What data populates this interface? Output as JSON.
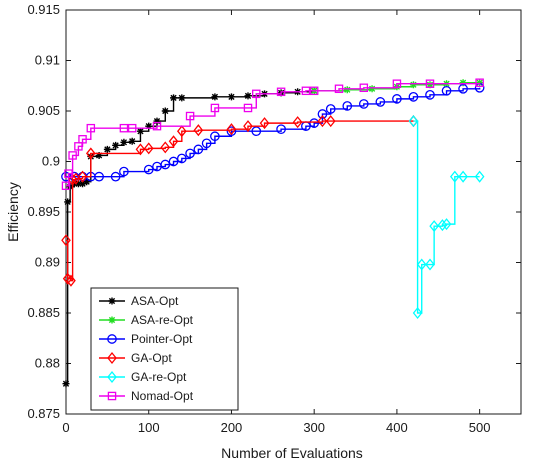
{
  "chart_data": {
    "type": "line",
    "xlabel": "Number of Evaluations",
    "ylabel": "Efficiency",
    "xlim": [
      0,
      550
    ],
    "ylim": [
      0.875,
      0.915
    ],
    "x_ticks": [
      0,
      100,
      200,
      300,
      400,
      500
    ],
    "y_ticks": [
      0.875,
      0.88,
      0.885,
      0.89,
      0.895,
      0.9,
      0.905,
      0.91,
      0.915
    ],
    "grid": false,
    "legend_position": "lower-left",
    "series": [
      {
        "name": "ASA-Opt",
        "color": "#000000",
        "marker": "star",
        "step": true,
        "points": [
          [
            0,
            0.878
          ],
          [
            2,
            0.896
          ],
          [
            5,
            0.8975
          ],
          [
            10,
            0.8978
          ],
          [
            15,
            0.8978
          ],
          [
            20,
            0.8978
          ],
          [
            25,
            0.898
          ],
          [
            30,
            0.9005
          ],
          [
            40,
            0.9006
          ],
          [
            50,
            0.9012
          ],
          [
            60,
            0.9016
          ],
          [
            70,
            0.9019
          ],
          [
            80,
            0.902
          ],
          [
            90,
            0.903
          ],
          [
            100,
            0.9035
          ],
          [
            110,
            0.904
          ],
          [
            120,
            0.905
          ],
          [
            130,
            0.9063
          ],
          [
            140,
            0.9063
          ],
          [
            180,
            0.9064
          ],
          [
            200,
            0.9064
          ],
          [
            220,
            0.9065
          ],
          [
            240,
            0.9067
          ],
          [
            260,
            0.9068
          ],
          [
            280,
            0.9069
          ],
          [
            300,
            0.907
          ]
        ]
      },
      {
        "name": "ASA-re-Opt",
        "color": "#22dd22",
        "marker": "star",
        "step": true,
        "points": [
          [
            300,
            0.907
          ],
          [
            340,
            0.9071
          ],
          [
            370,
            0.9072
          ],
          [
            400,
            0.9074
          ],
          [
            420,
            0.9076
          ],
          [
            440,
            0.9076
          ],
          [
            460,
            0.9077
          ],
          [
            480,
            0.9078
          ],
          [
            500,
            0.9078
          ]
        ]
      },
      {
        "name": "Pointer-Opt",
        "color": "#0000ff",
        "marker": "circle",
        "step": true,
        "points": [
          [
            0,
            0.8985
          ],
          [
            10,
            0.8985
          ],
          [
            20,
            0.8985
          ],
          [
            30,
            0.8985
          ],
          [
            40,
            0.8985
          ],
          [
            60,
            0.8985
          ],
          [
            70,
            0.899
          ],
          [
            100,
            0.8992
          ],
          [
            110,
            0.8995
          ],
          [
            120,
            0.8997
          ],
          [
            130,
            0.9
          ],
          [
            140,
            0.9003
          ],
          [
            150,
            0.9008
          ],
          [
            160,
            0.9012
          ],
          [
            170,
            0.9018
          ],
          [
            180,
            0.9025
          ],
          [
            200,
            0.903
          ],
          [
            230,
            0.903
          ],
          [
            260,
            0.9032
          ],
          [
            290,
            0.9035
          ],
          [
            300,
            0.9038
          ],
          [
            310,
            0.9047
          ],
          [
            320,
            0.9052
          ],
          [
            340,
            0.9055
          ],
          [
            360,
            0.9057
          ],
          [
            380,
            0.9059
          ],
          [
            400,
            0.9062
          ],
          [
            420,
            0.9064
          ],
          [
            440,
            0.9066
          ],
          [
            460,
            0.907
          ],
          [
            480,
            0.9072
          ],
          [
            500,
            0.9073
          ]
        ]
      },
      {
        "name": "GA-Opt",
        "color": "#ff0000",
        "marker": "diamond",
        "step": true,
        "points": [
          [
            0,
            0.8922
          ],
          [
            2,
            0.8884
          ],
          [
            6,
            0.8882
          ],
          [
            8,
            0.8982
          ],
          [
            12,
            0.8983
          ],
          [
            20,
            0.8985
          ],
          [
            30,
            0.9008
          ],
          [
            90,
            0.9012
          ],
          [
            100,
            0.9013
          ],
          [
            120,
            0.9014
          ],
          [
            130,
            0.902
          ],
          [
            140,
            0.903
          ],
          [
            160,
            0.9031
          ],
          [
            200,
            0.9032
          ],
          [
            220,
            0.9035
          ],
          [
            240,
            0.9038
          ],
          [
            280,
            0.9039
          ],
          [
            310,
            0.904
          ],
          [
            320,
            0.904
          ],
          [
            420,
            0.904
          ]
        ]
      },
      {
        "name": "GA-re-Opt",
        "color": "#00ffff",
        "marker": "diamond",
        "step": true,
        "points": [
          [
            420,
            0.904
          ],
          [
            425,
            0.885
          ],
          [
            430,
            0.8898
          ],
          [
            440,
            0.8898
          ],
          [
            445,
            0.8936
          ],
          [
            455,
            0.8937
          ],
          [
            460,
            0.8938
          ],
          [
            470,
            0.8985
          ],
          [
            480,
            0.8985
          ],
          [
            500,
            0.8985
          ]
        ]
      },
      {
        "name": "Nomad-Opt",
        "color": "#ee00ee",
        "marker": "square",
        "step": true,
        "points": [
          [
            0,
            0.8976
          ],
          [
            3,
            0.8988
          ],
          [
            8,
            0.9006
          ],
          [
            15,
            0.9015
          ],
          [
            20,
            0.9022
          ],
          [
            30,
            0.9033
          ],
          [
            70,
            0.9033
          ],
          [
            80,
            0.9033
          ],
          [
            110,
            0.9035
          ],
          [
            150,
            0.9045
          ],
          [
            180,
            0.9053
          ],
          [
            220,
            0.9053
          ],
          [
            230,
            0.9067
          ],
          [
            260,
            0.9069
          ],
          [
            290,
            0.907
          ],
          [
            300,
            0.907
          ],
          [
            330,
            0.9072
          ],
          [
            360,
            0.9073
          ],
          [
            400,
            0.9077
          ],
          [
            440,
            0.9077
          ],
          [
            500,
            0.9078
          ]
        ]
      }
    ]
  }
}
